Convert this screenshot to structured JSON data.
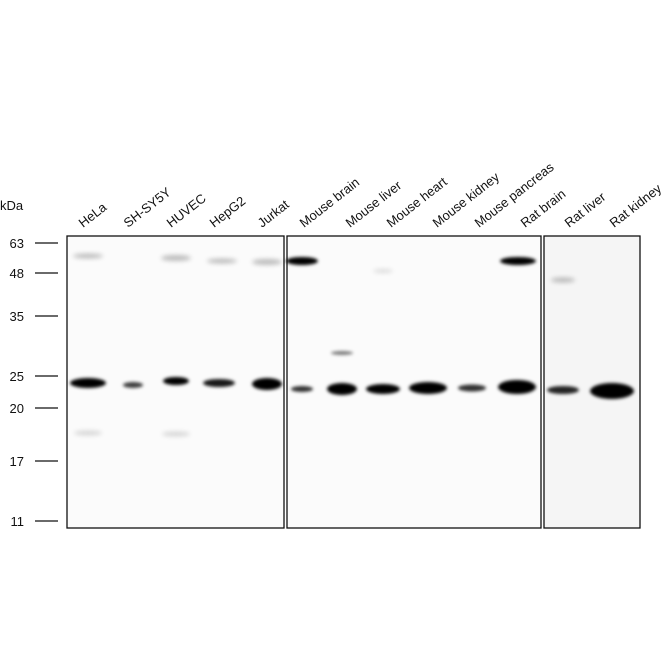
{
  "marker_axis": {
    "unit": "kDa",
    "markers": [
      "63",
      "48",
      "35",
      "25",
      "20",
      "17",
      "11"
    ]
  },
  "lanes": [
    "HeLa",
    "SH-SY5Y",
    "HUVEC",
    "HepG2",
    "Jurkat",
    "Mouse brain",
    "Mouse liver",
    "Mouse heart",
    "Mouse kidney",
    "Mouse pancreas",
    "Rat brain",
    "Rat liver",
    "Rat kidney"
  ]
}
